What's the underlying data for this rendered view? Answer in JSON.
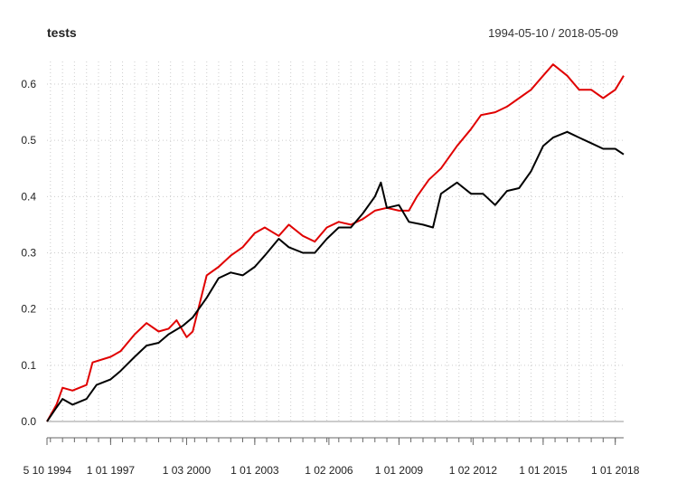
{
  "chart_data": {
    "type": "line",
    "title": "tests",
    "subtitle": "1994-05-10 / 2018-05-09",
    "xlabel": "",
    "ylabel": "",
    "x_range": [
      "1994-05-10",
      "2018-05-09"
    ],
    "ylim": [
      0.0,
      0.65
    ],
    "y_ticks": [
      0.0,
      0.1,
      0.2,
      0.3,
      0.4,
      0.5,
      0.6
    ],
    "y_tick_labels": [
      "0.0",
      "0.1",
      "0.2",
      "0.3",
      "0.4",
      "0.5",
      "0.6"
    ],
    "x_ticks": [
      {
        "date": "1994-05-10",
        "label": "5 10 1994"
      },
      {
        "date": "1997-01-01",
        "label": "1 01 1997"
      },
      {
        "date": "2000-03-01",
        "label": "1 03 2000"
      },
      {
        "date": "2003-01-01",
        "label": "1 01 2003"
      },
      {
        "date": "2006-02-01",
        "label": "1 02 2006"
      },
      {
        "date": "2009-01-01",
        "label": "1 01 2009"
      },
      {
        "date": "2012-02-01",
        "label": "1 02 2012"
      },
      {
        "date": "2015-01-01",
        "label": "1 01 2015"
      },
      {
        "date": "2018-01-01",
        "label": "1 01 2018"
      }
    ],
    "grid": true,
    "series": [
      {
        "color": "#e00000",
        "points": [
          [
            "1994-05-10",
            0.0
          ],
          [
            "1994-10-01",
            0.03
          ],
          [
            "1995-01-01",
            0.06
          ],
          [
            "1995-06-01",
            0.055
          ],
          [
            "1996-01-01",
            0.065
          ],
          [
            "1996-04-01",
            0.105
          ],
          [
            "1997-01-01",
            0.115
          ],
          [
            "1997-06-01",
            0.125
          ],
          [
            "1998-01-01",
            0.155
          ],
          [
            "1998-07-01",
            0.175
          ],
          [
            "1999-01-01",
            0.16
          ],
          [
            "1999-06-01",
            0.165
          ],
          [
            "1999-10-01",
            0.18
          ],
          [
            "2000-03-01",
            0.15
          ],
          [
            "2000-06-01",
            0.16
          ],
          [
            "2001-01-01",
            0.26
          ],
          [
            "2001-07-01",
            0.275
          ],
          [
            "2002-01-01",
            0.295
          ],
          [
            "2002-07-01",
            0.31
          ],
          [
            "2003-01-01",
            0.335
          ],
          [
            "2003-06-01",
            0.345
          ],
          [
            "2004-01-01",
            0.33
          ],
          [
            "2004-06-01",
            0.35
          ],
          [
            "2005-01-01",
            0.33
          ],
          [
            "2005-07-01",
            0.32
          ],
          [
            "2006-01-01",
            0.345
          ],
          [
            "2006-07-01",
            0.355
          ],
          [
            "2007-01-01",
            0.35
          ],
          [
            "2007-07-01",
            0.36
          ],
          [
            "2008-01-01",
            0.375
          ],
          [
            "2008-07-01",
            0.38
          ],
          [
            "2009-01-01",
            0.375
          ],
          [
            "2009-06-01",
            0.375
          ],
          [
            "2009-10-01",
            0.4
          ],
          [
            "2010-04-01",
            0.43
          ],
          [
            "2010-10-01",
            0.45
          ],
          [
            "2011-06-01",
            0.49
          ],
          [
            "2012-01-01",
            0.52
          ],
          [
            "2012-06-01",
            0.545
          ],
          [
            "2013-01-01",
            0.55
          ],
          [
            "2013-07-01",
            0.56
          ],
          [
            "2014-01-01",
            0.575
          ],
          [
            "2014-07-01",
            0.59
          ],
          [
            "2015-01-01",
            0.615
          ],
          [
            "2015-06-01",
            0.635
          ],
          [
            "2016-01-01",
            0.615
          ],
          [
            "2016-07-01",
            0.59
          ],
          [
            "2017-01-01",
            0.59
          ],
          [
            "2017-07-01",
            0.575
          ],
          [
            "2018-01-01",
            0.59
          ],
          [
            "2018-05-09",
            0.615
          ]
        ]
      },
      {
        "color": "#000000",
        "points": [
          [
            "1994-05-10",
            0.0
          ],
          [
            "1994-10-01",
            0.025
          ],
          [
            "1995-01-01",
            0.04
          ],
          [
            "1995-06-01",
            0.03
          ],
          [
            "1996-01-01",
            0.04
          ],
          [
            "1996-06-01",
            0.065
          ],
          [
            "1997-01-01",
            0.075
          ],
          [
            "1997-06-01",
            0.09
          ],
          [
            "1998-01-01",
            0.115
          ],
          [
            "1998-07-01",
            0.135
          ],
          [
            "1999-01-01",
            0.14
          ],
          [
            "1999-06-01",
            0.155
          ],
          [
            "2000-01-01",
            0.17
          ],
          [
            "2000-06-01",
            0.185
          ],
          [
            "2001-01-01",
            0.22
          ],
          [
            "2001-07-01",
            0.255
          ],
          [
            "2002-01-01",
            0.265
          ],
          [
            "2002-07-01",
            0.26
          ],
          [
            "2003-01-01",
            0.275
          ],
          [
            "2003-06-01",
            0.295
          ],
          [
            "2004-01-01",
            0.325
          ],
          [
            "2004-06-01",
            0.31
          ],
          [
            "2005-01-01",
            0.3
          ],
          [
            "2005-07-01",
            0.3
          ],
          [
            "2006-01-01",
            0.325
          ],
          [
            "2006-07-01",
            0.345
          ],
          [
            "2007-01-01",
            0.345
          ],
          [
            "2007-07-01",
            0.37
          ],
          [
            "2008-01-01",
            0.4
          ],
          [
            "2008-04-01",
            0.425
          ],
          [
            "2008-07-01",
            0.38
          ],
          [
            "2009-01-01",
            0.385
          ],
          [
            "2009-06-01",
            0.355
          ],
          [
            "2010-01-01",
            0.35
          ],
          [
            "2010-06-01",
            0.345
          ],
          [
            "2010-10-01",
            0.405
          ],
          [
            "2011-06-01",
            0.425
          ],
          [
            "2012-01-01",
            0.405
          ],
          [
            "2012-07-01",
            0.405
          ],
          [
            "2013-01-01",
            0.385
          ],
          [
            "2013-07-01",
            0.41
          ],
          [
            "2014-01-01",
            0.415
          ],
          [
            "2014-07-01",
            0.445
          ],
          [
            "2015-01-01",
            0.49
          ],
          [
            "2015-06-01",
            0.505
          ],
          [
            "2016-01-01",
            0.515
          ],
          [
            "2016-07-01",
            0.505
          ],
          [
            "2017-01-01",
            0.495
          ],
          [
            "2017-07-01",
            0.485
          ],
          [
            "2018-01-01",
            0.485
          ],
          [
            "2018-05-09",
            0.475
          ]
        ]
      }
    ]
  }
}
